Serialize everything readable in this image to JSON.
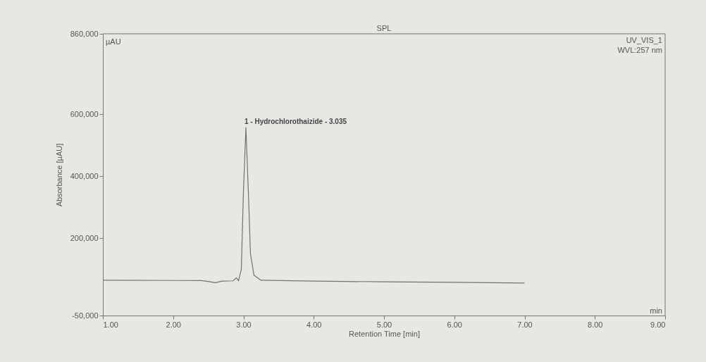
{
  "chart_data": {
    "type": "line",
    "title": "SPL",
    "xlabel": "Retention Time [min]",
    "ylabel": "Absorbance [µAU]",
    "x": [
      1.0,
      2.4,
      2.5,
      2.6,
      2.7,
      2.85,
      2.9,
      2.93,
      2.97,
      3.0,
      3.035,
      3.07,
      3.1,
      3.15,
      3.25,
      4.0,
      5.0,
      6.0,
      7.0
    ],
    "series": [
      {
        "color": "#6f7370",
        "values": [
          64000,
          63000,
          60000,
          56000,
          61000,
          62000,
          72000,
          62000,
          100000,
          350000,
          557000,
          350000,
          150000,
          80000,
          64000,
          61000,
          59000,
          57000,
          55000
        ]
      }
    ],
    "xlim": [
      1.0,
      9.0
    ],
    "xticks": [
      {
        "value": 1,
        "label": "1.00"
      },
      {
        "value": 2,
        "label": "2.00"
      },
      {
        "value": 3,
        "label": "3.00"
      },
      {
        "value": 4,
        "label": "4.00"
      },
      {
        "value": 5,
        "label": "5.00"
      },
      {
        "value": 6,
        "label": "6.00"
      },
      {
        "value": 7,
        "label": "7.00"
      },
      {
        "value": 8,
        "label": "8.00"
      },
      {
        "value": 9,
        "label": "9.00"
      }
    ],
    "ylim": [
      -50000,
      860000
    ],
    "yticks": [
      {
        "value": -50000,
        "label": "-50,000"
      },
      {
        "value": 200000,
        "label": "200,000"
      },
      {
        "value": 400000,
        "label": "400,000"
      },
      {
        "value": 600000,
        "label": "600,000"
      },
      {
        "value": 860000,
        "label": "860,000"
      }
    ],
    "annotations": [
      {
        "text": "1 - Hydrochlorothaizide - 3.035",
        "x": 3.035,
        "y": 557000
      },
      "µAU",
      "UV_VIS_1",
      "WVL:257 nm",
      "min"
    ],
    "grid": false,
    "marker": "none",
    "line_style": "solid"
  }
}
